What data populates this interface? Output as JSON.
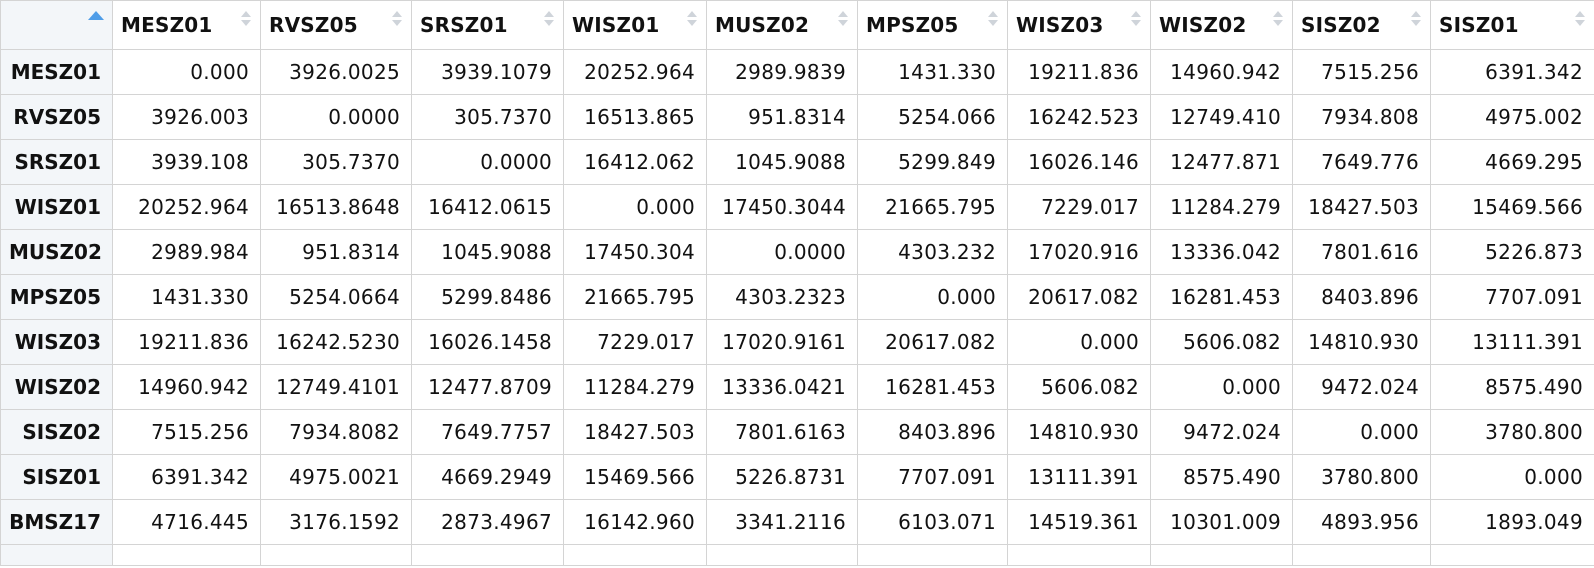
{
  "table": {
    "sort_indicator": "sort-ascending-icon",
    "columns": [
      "MESZ01",
      "RVSZ05",
      "SRSZ01",
      "WISZ01",
      "MUSZ02",
      "MPSZ05",
      "WISZ03",
      "WISZ02",
      "SISZ02",
      "SISZ01"
    ],
    "rows": [
      {
        "name": "MESZ01",
        "cells": [
          "0.000",
          "3926.0025",
          "3939.1079",
          "20252.964",
          "2989.9839",
          "1431.330",
          "19211.836",
          "14960.942",
          "7515.256",
          "6391.342"
        ]
      },
      {
        "name": "RVSZ05",
        "cells": [
          "3926.003",
          "0.0000",
          "305.7370",
          "16513.865",
          "951.8314",
          "5254.066",
          "16242.523",
          "12749.410",
          "7934.808",
          "4975.002"
        ]
      },
      {
        "name": "SRSZ01",
        "cells": [
          "3939.108",
          "305.7370",
          "0.0000",
          "16412.062",
          "1045.9088",
          "5299.849",
          "16026.146",
          "12477.871",
          "7649.776",
          "4669.295"
        ]
      },
      {
        "name": "WISZ01",
        "cells": [
          "20252.964",
          "16513.8648",
          "16412.0615",
          "0.000",
          "17450.3044",
          "21665.795",
          "7229.017",
          "11284.279",
          "18427.503",
          "15469.566"
        ]
      },
      {
        "name": "MUSZ02",
        "cells": [
          "2989.984",
          "951.8314",
          "1045.9088",
          "17450.304",
          "0.0000",
          "4303.232",
          "17020.916",
          "13336.042",
          "7801.616",
          "5226.873"
        ]
      },
      {
        "name": "MPSZ05",
        "cells": [
          "1431.330",
          "5254.0664",
          "5299.8486",
          "21665.795",
          "4303.2323",
          "0.000",
          "20617.082",
          "16281.453",
          "8403.896",
          "7707.091"
        ]
      },
      {
        "name": "WISZ03",
        "cells": [
          "19211.836",
          "16242.5230",
          "16026.1458",
          "7229.017",
          "17020.9161",
          "20617.082",
          "0.000",
          "5606.082",
          "14810.930",
          "13111.391"
        ]
      },
      {
        "name": "WISZ02",
        "cells": [
          "14960.942",
          "12749.4101",
          "12477.8709",
          "11284.279",
          "13336.0421",
          "16281.453",
          "5606.082",
          "0.000",
          "9472.024",
          "8575.490"
        ]
      },
      {
        "name": "SISZ02",
        "cells": [
          "7515.256",
          "7934.8082",
          "7649.7757",
          "18427.503",
          "7801.6163",
          "8403.896",
          "14810.930",
          "9472.024",
          "0.000",
          "3780.800"
        ]
      },
      {
        "name": "SISZ01",
        "cells": [
          "6391.342",
          "4975.0021",
          "4669.2949",
          "15469.566",
          "5226.8731",
          "7707.091",
          "13111.391",
          "8575.490",
          "3780.800",
          "0.000"
        ]
      },
      {
        "name": "BMSZ17",
        "cells": [
          "4716.445",
          "3176.1592",
          "2873.4967",
          "16142.960",
          "3341.2116",
          "6103.071",
          "14519.361",
          "10301.009",
          "4893.956",
          "1893.049"
        ]
      }
    ]
  },
  "colors": {
    "sort_active": "#4f9de8",
    "sort_inactive": "#cfd4da",
    "row_header_bg": "#f3f6f9",
    "grid_line": "#d4d4d4"
  }
}
